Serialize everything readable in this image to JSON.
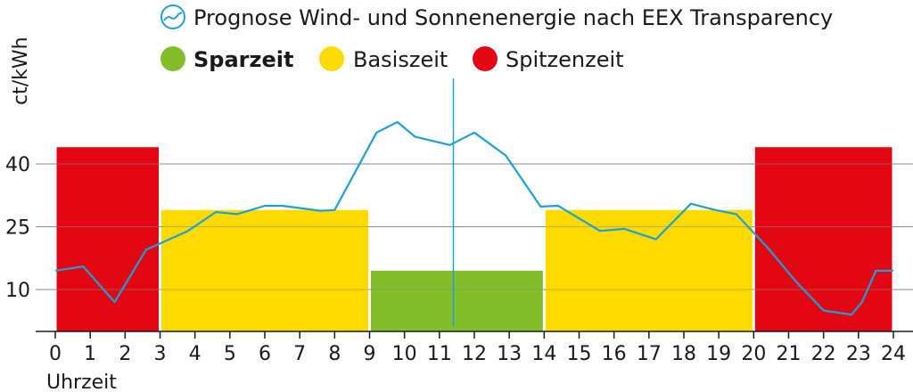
{
  "chart_data": {
    "type": "line",
    "title": "",
    "ylabel": "ct/kWh",
    "xlabel": "Uhrzeit",
    "x_ticks": [
      0,
      1,
      2,
      3,
      4,
      5,
      6,
      7,
      8,
      9,
      10,
      11,
      12,
      13,
      14,
      15,
      16,
      17,
      18,
      19,
      20,
      21,
      22,
      23,
      24
    ],
    "y_ticks": [
      10,
      25,
      40
    ],
    "ylim": [
      0,
      50
    ],
    "xlim": [
      0,
      24
    ],
    "grid": true,
    "legend": {
      "line": "Prognose Wind- und Sonnenenergie nach EEX Transparency",
      "tariffs": [
        {
          "name": "Sparzeit",
          "color": "#84bd2a",
          "bold": true
        },
        {
          "name": "Basiszeit",
          "color": "#fddb00",
          "bold": false
        },
        {
          "name": "Spitzenzeit",
          "color": "#e30613",
          "bold": false
        }
      ]
    },
    "tariff_bands": [
      {
        "tariff": "Spitzenzeit",
        "start": 0,
        "end": 3,
        "value": 44
      },
      {
        "tariff": "Basiszeit",
        "start": 3,
        "end": 9,
        "value": 29
      },
      {
        "tariff": "Sparzeit",
        "start": 9,
        "end": 14,
        "value": 14.5
      },
      {
        "tariff": "Basiszeit",
        "start": 14,
        "end": 20,
        "value": 29
      },
      {
        "tariff": "Spitzenzeit",
        "start": 20,
        "end": 24,
        "value": 44
      }
    ],
    "series": [
      {
        "color": "#1ca0dc",
        "x": [
          0,
          0.8,
          1.7,
          2.6,
          3.8,
          4.6,
          5.2,
          6.0,
          6.5,
          7.6,
          8.0,
          9.2,
          9.8,
          10.3,
          11.3,
          12.0,
          12.9,
          13.9,
          14.4,
          14.8,
          15.6,
          16.3,
          17.2,
          18.2,
          18.9,
          19.5,
          20.4,
          21.2,
          22.0,
          22.8,
          23.1,
          23.5,
          24.0
        ],
        "y": [
          14.5,
          15.5,
          7.0,
          19.5,
          24.0,
          28.5,
          28.0,
          30.0,
          30.0,
          28.8,
          29.0,
          47.5,
          50.0,
          46.5,
          44.5,
          47.5,
          42.0,
          29.8,
          30.0,
          28.0,
          24.0,
          24.5,
          22.0,
          30.5,
          29.0,
          28.0,
          20.0,
          12.0,
          5.0,
          4.0,
          7.0,
          14.5,
          14.5
        ]
      }
    ],
    "marker_x": 11.4
  }
}
